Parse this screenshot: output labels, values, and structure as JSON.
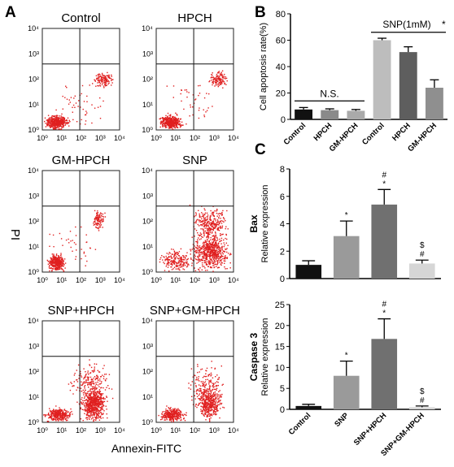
{
  "panel_labels": {
    "a": "A",
    "b": "B",
    "c": "C"
  },
  "flow": {
    "ylabel": "PI",
    "xlabel": "Annexin-FITC",
    "dot_color": "#e02020",
    "ylabel_color": "#e02020",
    "xlabel_color": "#1a9a2a",
    "tick_labels": [
      "10⁰",
      "10¹",
      "10²",
      "10³",
      "10⁴"
    ],
    "plots": [
      {
        "title": "Control"
      },
      {
        "title": "HPCH"
      },
      {
        "title": "GM-HPCH"
      },
      {
        "title": "SNP"
      },
      {
        "title": "SNP+HPCH"
      },
      {
        "title": "SNP+GM-HPCH"
      }
    ]
  },
  "chart_data": [
    {
      "type": "bar",
      "panel": "B",
      "ylabel": "Cell apoptosis rate(%)",
      "ylim": [
        0,
        80
      ],
      "yticks": [
        0,
        20,
        40,
        60,
        80
      ],
      "categories": [
        "Control",
        "HPCH",
        "GM-HPCH",
        "Control",
        "HPCH",
        "GM-HPCH"
      ],
      "values": [
        7.5,
        7.0,
        6.5,
        60,
        51,
        24
      ],
      "errors": [
        1.5,
        1.0,
        1.0,
        1.5,
        4.0,
        6.0
      ],
      "colors": [
        "#111111",
        "#8a8a8a",
        "#aaaaaa",
        "#bdbdbd",
        "#5e5e5e",
        "#8f8f8f"
      ],
      "annotations": {
        "ns": "N.S.",
        "snp": "SNP(1mM)",
        "star": "*"
      }
    },
    {
      "type": "bar",
      "panel": "C-top",
      "ylabel": "Bax",
      "ylabel2": "Relative expression",
      "ylim": [
        0,
        8
      ],
      "yticks": [
        0,
        2,
        4,
        6,
        8
      ],
      "categories": [
        "Control",
        "SNP",
        "SNP+HPCH",
        "SNP+GM-HPCH"
      ],
      "values": [
        1.0,
        3.1,
        5.4,
        1.1
      ],
      "errors": [
        0.3,
        1.1,
        1.1,
        0.25
      ],
      "colors": [
        "#111111",
        "#9a9a9a",
        "#707070",
        "#d6d6d6"
      ],
      "marks": [
        [],
        [
          "*"
        ],
        [
          "#",
          "*"
        ],
        [
          "$",
          "#"
        ]
      ]
    },
    {
      "type": "bar",
      "panel": "C-bottom",
      "ylabel": "Caspase 3",
      "ylabel2": "Relative expression",
      "ylim": [
        0,
        25
      ],
      "yticks": [
        0,
        5,
        10,
        15,
        20,
        25
      ],
      "categories": [
        "Control",
        "SNP",
        "SNP+HPCH",
        "SNP+GM-HPCH"
      ],
      "values": [
        0.8,
        8.0,
        16.8,
        0.5
      ],
      "errors": [
        0.4,
        3.5,
        4.8,
        0.3
      ],
      "colors": [
        "#111111",
        "#9a9a9a",
        "#707070",
        "#d6d6d6"
      ],
      "marks": [
        [],
        [
          "*"
        ],
        [
          "#",
          "*"
        ],
        [
          "$",
          "#"
        ]
      ]
    }
  ]
}
